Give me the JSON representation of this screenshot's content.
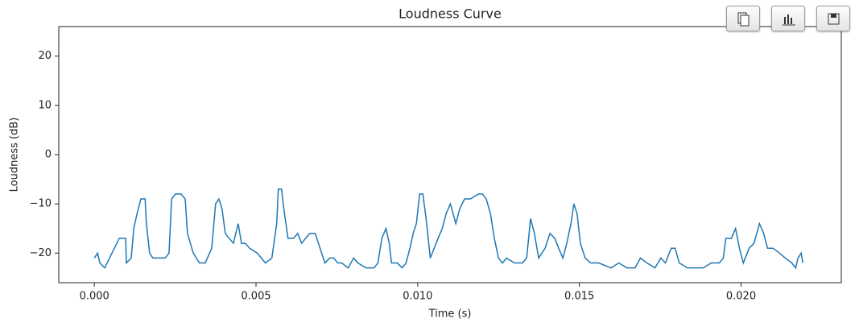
{
  "chart_data": {
    "type": "line",
    "title": "Loudness Curve",
    "x_label": "Time (s)",
    "y_label": "Loudness (dB)",
    "x": [
      0,
      0.0001,
      0.00017,
      0.00032,
      0.00077,
      0.00097,
      0.00099,
      0.00114,
      0.00122,
      0.00132,
      0.00144,
      0.00157,
      0.00161,
      0.00171,
      0.00181,
      0.00194,
      0.00219,
      0.00231,
      0.00239,
      0.00251,
      0.00268,
      0.00281,
      0.00288,
      0.00306,
      0.00325,
      0.00343,
      0.00363,
      0.00375,
      0.00385,
      0.00395,
      0.00405,
      0.00417,
      0.0043,
      0.00445,
      0.00455,
      0.00467,
      0.0048,
      0.00504,
      0.00529,
      0.00549,
      0.00564,
      0.00569,
      0.00579,
      0.00586,
      0.00599,
      0.00616,
      0.00629,
      0.00641,
      0.00666,
      0.00683,
      0.00698,
      0.00713,
      0.00728,
      0.0074,
      0.00753,
      0.00765,
      0.00785,
      0.00802,
      0.00815,
      0.0084,
      0.00865,
      0.00877,
      0.00889,
      0.00902,
      0.00912,
      0.00919,
      0.00937,
      0.00952,
      0.00964,
      0.00976,
      0.00986,
      0.00996,
      0.01006,
      0.01016,
      0.01026,
      0.01039,
      0.01051,
      0.01063,
      0.01076,
      0.01088,
      0.01101,
      0.01118,
      0.0113,
      0.01145,
      0.01163,
      0.01188,
      0.012,
      0.01212,
      0.01225,
      0.01237,
      0.0125,
      0.01262,
      0.01275,
      0.01299,
      0.01324,
      0.01337,
      0.01349,
      0.01361,
      0.01374,
      0.01394,
      0.01409,
      0.01424,
      0.01436,
      0.01449,
      0.01461,
      0.01474,
      0.01483,
      0.01493,
      0.01503,
      0.01518,
      0.01535,
      0.0156,
      0.01598,
      0.01622,
      0.01647,
      0.01672,
      0.01689,
      0.01709,
      0.01734,
      0.01752,
      0.01766,
      0.01784,
      0.01796,
      0.01809,
      0.01834,
      0.01858,
      0.01883,
      0.01908,
      0.01933,
      0.01945,
      0.01953,
      0.0197,
      0.01983,
      0.01995,
      0.02007,
      0.02025,
      0.0204,
      0.02057,
      0.0207,
      0.02082,
      0.02099,
      0.02119,
      0.02137,
      0.02157,
      0.02169,
      0.02176,
      0.02186,
      0.02191
    ],
    "series": [
      {
        "color": "#1f77b4",
        "values": [
          -21,
          -20,
          -22,
          -23,
          -17,
          -17,
          -22,
          -21,
          -15,
          -12,
          -9,
          -9,
          -14,
          -20,
          -21,
          -21,
          -21,
          -20,
          -9,
          -8,
          -8,
          -9,
          -16,
          -20,
          -22,
          -22,
          -19,
          -10,
          -9,
          -11,
          -16,
          -17,
          -18,
          -14,
          -18,
          -18,
          -19,
          -20,
          -22,
          -21,
          -14,
          -7,
          -7,
          -11,
          -17,
          -17,
          -16,
          -18,
          -16,
          -16,
          -19,
          -22,
          -21,
          -21,
          -22,
          -22,
          -23,
          -21,
          -22,
          -23,
          -23,
          -22,
          -17,
          -15,
          -18,
          -22,
          -22,
          -23,
          -22,
          -19,
          -16,
          -14,
          -8,
          -8,
          -13,
          -21,
          -19,
          -17,
          -15,
          -12,
          -10,
          -14,
          -11,
          -9,
          -9,
          -8,
          -8,
          -9,
          -12,
          -17,
          -21,
          -22,
          -21,
          -22,
          -22,
          -21,
          -13,
          -16,
          -21,
          -19,
          -16,
          -17,
          -19,
          -21,
          -18,
          -14,
          -10,
          -12,
          -18,
          -21,
          -22,
          -22,
          -23,
          -22,
          -23,
          -23,
          -21,
          -22,
          -23,
          -21,
          -22,
          -19,
          -19,
          -22,
          -23,
          -23,
          -23,
          -22,
          -22,
          -21,
          -17,
          -17,
          -15,
          -19,
          -22,
          -19,
          -18,
          -14,
          -16,
          -19,
          -19,
          -20,
          -21,
          -22,
          -23,
          -21,
          -20,
          -22
        ]
      }
    ],
    "xlim": [
      -0.0011,
      0.0231
    ],
    "ylim": [
      -26,
      26
    ],
    "xticks": [
      {
        "value": 0,
        "label": "0.000"
      },
      {
        "value": 0.005,
        "label": "0.005"
      },
      {
        "value": 0.01,
        "label": "0.010"
      },
      {
        "value": 0.015,
        "label": "0.015"
      },
      {
        "value": 0.02,
        "label": "0.020"
      }
    ],
    "yticks": [
      {
        "value": -20,
        "label": "−20"
      },
      {
        "value": -10,
        "label": "−10"
      },
      0,
      10,
      20
    ],
    "grid": false
  }
}
